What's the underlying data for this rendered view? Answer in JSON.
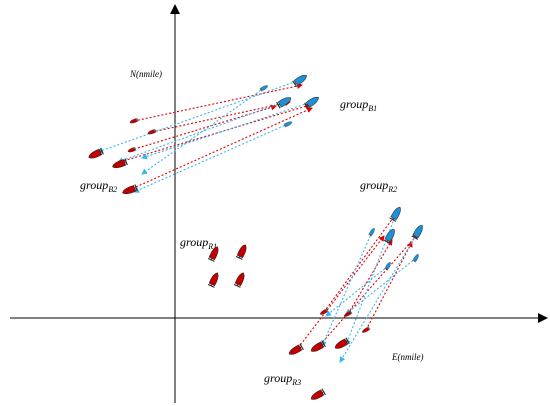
{
  "axes": {
    "north_label": "N(nmile)",
    "east_label": "E(nmile)"
  },
  "groups": {
    "b1_top": {
      "name": "group",
      "subscript": "B1"
    },
    "r2": {
      "name": "group",
      "subscript": "R2"
    },
    "b2": {
      "name": "group",
      "subscript": "B2"
    },
    "r1": {
      "name": "group",
      "subscript": "R1"
    },
    "r3": {
      "name": "group",
      "subscript": "R3"
    }
  },
  "colors": {
    "red_ship": "#c00000",
    "blue_ship": "#1f8fd6",
    "red_arrow": "#e00000",
    "blue_arrow": "#38b6f0",
    "axis": "#000000"
  }
}
